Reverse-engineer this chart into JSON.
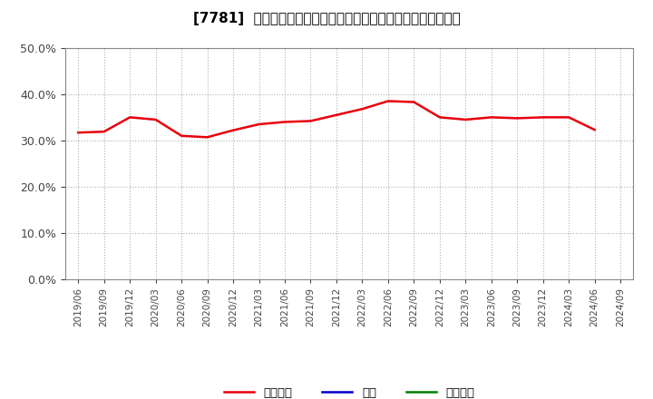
{
  "title": "[7781]  売上債権、在庫、買入債務の総資産に対する比率の推移",
  "x_labels": [
    "2019/06",
    "2019/09",
    "2019/12",
    "2020/03",
    "2020/06",
    "2020/09",
    "2020/12",
    "2021/03",
    "2021/06",
    "2021/09",
    "2021/12",
    "2022/03",
    "2022/06",
    "2022/09",
    "2022/12",
    "2023/03",
    "2023/06",
    "2023/09",
    "2023/12",
    "2024/03",
    "2024/06",
    "2024/09"
  ],
  "receivables": [
    0.317,
    0.319,
    0.35,
    0.345,
    0.31,
    0.307,
    0.322,
    0.335,
    0.34,
    0.342,
    0.355,
    0.368,
    0.385,
    0.383,
    0.35,
    0.345,
    0.35,
    0.348,
    0.35,
    0.35,
    0.323,
    null
  ],
  "inventory": [
    null,
    null,
    null,
    null,
    null,
    null,
    null,
    null,
    null,
    null,
    null,
    null,
    null,
    null,
    null,
    null,
    null,
    null,
    null,
    null,
    null,
    null
  ],
  "payables": [
    null,
    null,
    null,
    null,
    null,
    null,
    null,
    null,
    null,
    null,
    null,
    null,
    null,
    null,
    null,
    null,
    null,
    null,
    null,
    null,
    null,
    null
  ],
  "receivables_color": "#e8000d",
  "inventory_color": "#0000cc",
  "payables_color": "#008000",
  "ylim": [
    0.0,
    0.5
  ],
  "yticks": [
    0.0,
    0.1,
    0.2,
    0.3,
    0.4,
    0.5
  ],
  "background_color": "#ffffff",
  "plot_bg_color": "#ffffff",
  "grid_color": "#b0b0b0",
  "title_fontsize": 11,
  "legend_labels": [
    "売上債権",
    "在庫",
    "買入債務"
  ]
}
